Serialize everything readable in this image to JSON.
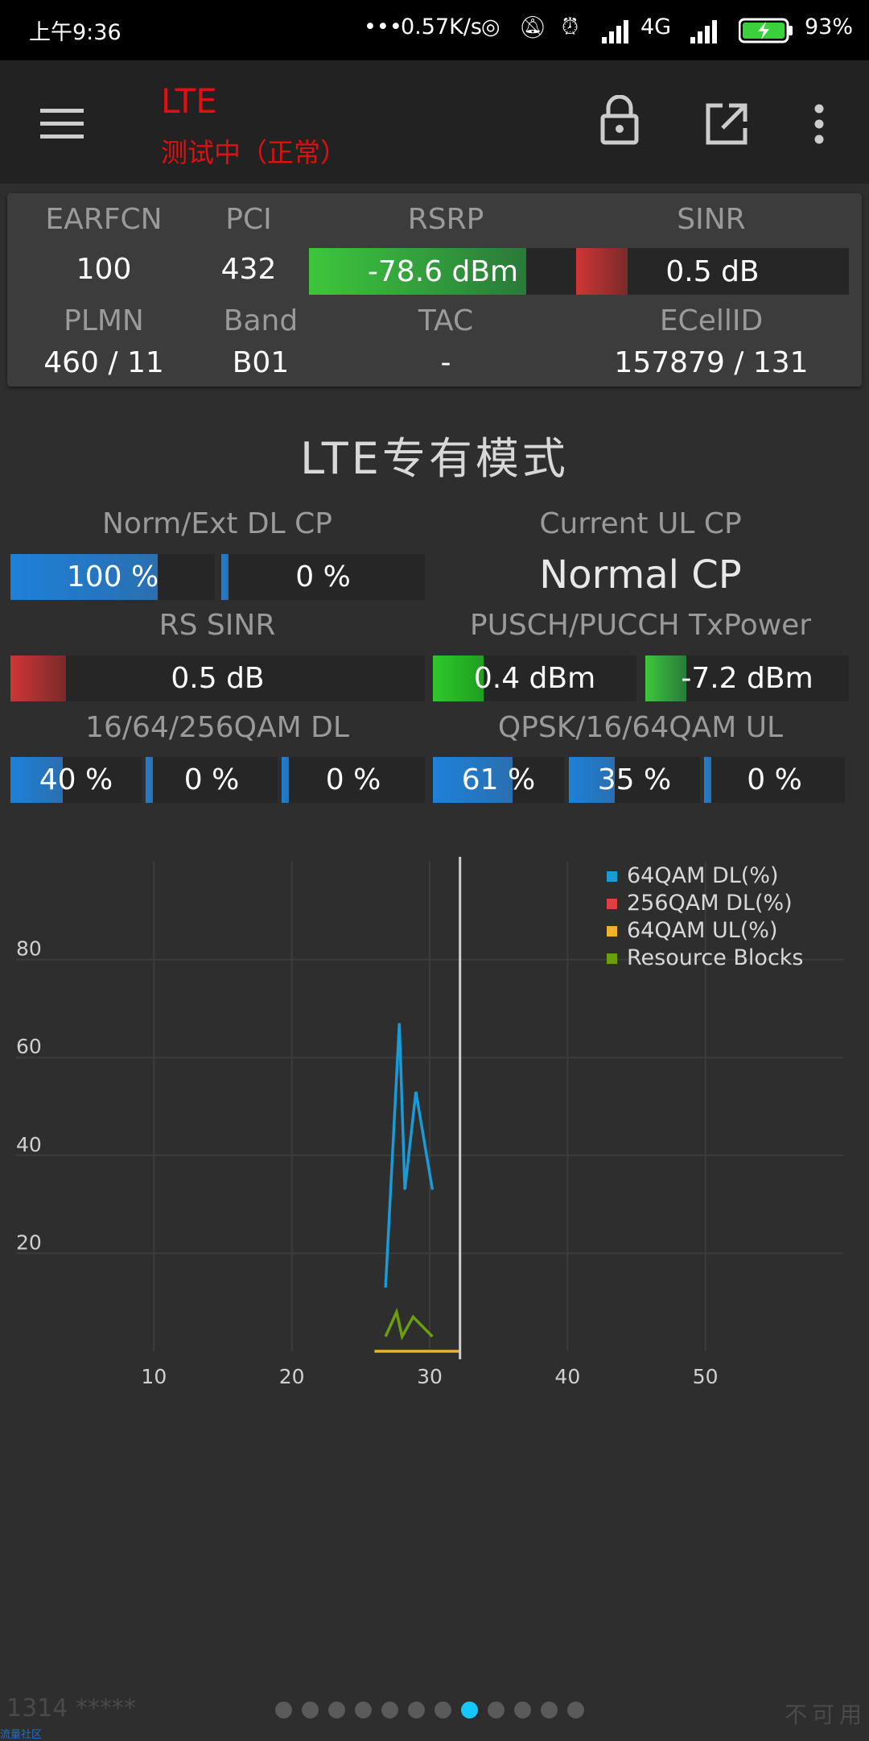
{
  "status_bar": {
    "time": "上午9:36",
    "net_speed": "0.57K/s",
    "network": "4G",
    "battery": "93%",
    "icons": [
      "dots-icon",
      "hotspot-icon",
      "mute-icon",
      "alarm-icon",
      "signal-icon",
      "signal-icon",
      "battery-charging-icon"
    ]
  },
  "toolbar": {
    "title": "LTE",
    "subtitle": "测试中（正常）",
    "title_color": "#e01010",
    "icons": [
      "menu-icon",
      "lock-icon",
      "share-icon",
      "more-icon"
    ]
  },
  "info": {
    "labels": {
      "earfcn": "EARFCN",
      "pci": "PCI",
      "rsrp": "RSRP",
      "sinr": "SINR",
      "plmn": "PLMN",
      "band": "Band",
      "tac": "TAC",
      "ecellid": "ECellID"
    },
    "values": {
      "earfcn": "100",
      "pci": "432",
      "rsrp": "-78.6 dBm",
      "sinr": "0.5 dB",
      "plmn": "460 / 11",
      "band": "B01",
      "tac": "-",
      "ecellid": "157879 / 131"
    },
    "rsrp_level": 0.81,
    "sinr_level": 0.19
  },
  "section": {
    "title": "LTE专有模式",
    "norm_ext_label": "Norm/Ext DL CP",
    "norm_value": "100 %",
    "norm_level": 1.0,
    "ext_value": "0 %",
    "ext_level": 0.0,
    "ul_cp_label": "Current UL CP",
    "ul_cp_value": "Normal CP",
    "rs_sinr_label": "RS SINR",
    "rs_sinr_value": "0.5 dB",
    "rs_sinr_level": 0.19,
    "txpower_label": "PUSCH/PUCCH TxPower",
    "pusch_value": "0.4 dBm",
    "pusch_level": 0.25,
    "pucch_value": "-7.2 dBm",
    "pucch_level": 0.2,
    "qam_dl_label": "16/64/256QAM DL",
    "qam_dl": [
      {
        "value": "40 %",
        "level": 0.4
      },
      {
        "value": "0 %",
        "level": 0.0
      },
      {
        "value": "0 %",
        "level": 0.0
      }
    ],
    "qam_ul_label": "QPSK/16/64QAM UL",
    "qam_ul": [
      {
        "value": "61 %",
        "level": 0.61
      },
      {
        "value": "35 %",
        "level": 0.35
      },
      {
        "value": "0 %",
        "level": 0.0
      }
    ]
  },
  "chart_data": {
    "type": "line",
    "x_ticks": [
      "10",
      "20",
      "30",
      "40",
      "50"
    ],
    "y_ticks": [
      "20",
      "40",
      "60",
      "80"
    ],
    "xlim": [
      0,
      60
    ],
    "ylim": [
      0,
      100
    ],
    "cursor_x": 32.2,
    "grid": true,
    "legend_position": "top-right",
    "series": [
      {
        "name": "64QAM DL(%)",
        "color": "#1a9ad6",
        "x": [
          26.8,
          27.8,
          28.2,
          29.0,
          30.2
        ],
        "y": [
          13,
          67,
          33,
          53,
          33
        ]
      },
      {
        "name": "256QAM DL(%)",
        "color": "#e04040",
        "x": [],
        "y": []
      },
      {
        "name": "64QAM UL(%)",
        "color": "#f0b030",
        "x": [
          26.0,
          32.2
        ],
        "y": [
          0,
          0
        ]
      },
      {
        "name": "Resource Blocks",
        "color": "#6aa010",
        "x": [
          26.8,
          27.6,
          28.0,
          28.8,
          30.2
        ],
        "y": [
          3,
          8,
          3,
          7,
          3
        ]
      }
    ]
  },
  "footer": {
    "left_text": "1314 *****",
    "right_text": "不可用",
    "watermark": "流量社区",
    "page_count": 12,
    "active_page": 8
  }
}
